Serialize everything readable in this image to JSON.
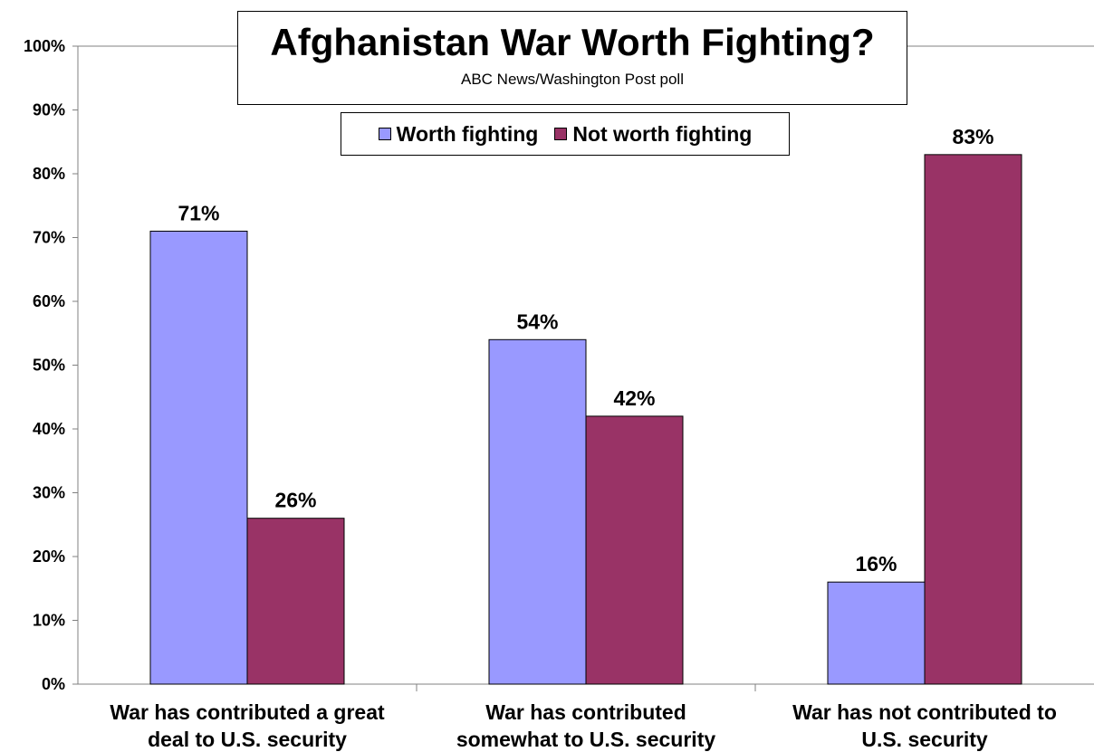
{
  "colors": {
    "worth": "#9999ff",
    "not_worth": "#993366",
    "axis": "#808080",
    "bar_border": "#000000"
  },
  "chart_data": {
    "type": "bar",
    "title": "Afghanistan War Worth Fighting?",
    "subtitle": "ABC News/Washington Post poll",
    "categories": [
      [
        "War has contributed a great",
        "deal to U.S. security"
      ],
      [
        "War has contributed",
        "somewhat to U.S. security"
      ],
      [
        "War has not contributed to",
        "U.S. security"
      ]
    ],
    "series": [
      {
        "name": "Worth fighting",
        "values": [
          71,
          54,
          16
        ],
        "labels": [
          "71%",
          "54%",
          "16%"
        ]
      },
      {
        "name": "Not worth fighting",
        "values": [
          26,
          42,
          83
        ],
        "labels": [
          "26%",
          "42%",
          "83%"
        ]
      }
    ],
    "ylim": [
      0,
      100
    ],
    "yticks": [
      "0%",
      "10%",
      "20%",
      "30%",
      "40%",
      "50%",
      "60%",
      "70%",
      "80%",
      "90%",
      "100%"
    ],
    "grid": false,
    "legend": "top-center"
  }
}
